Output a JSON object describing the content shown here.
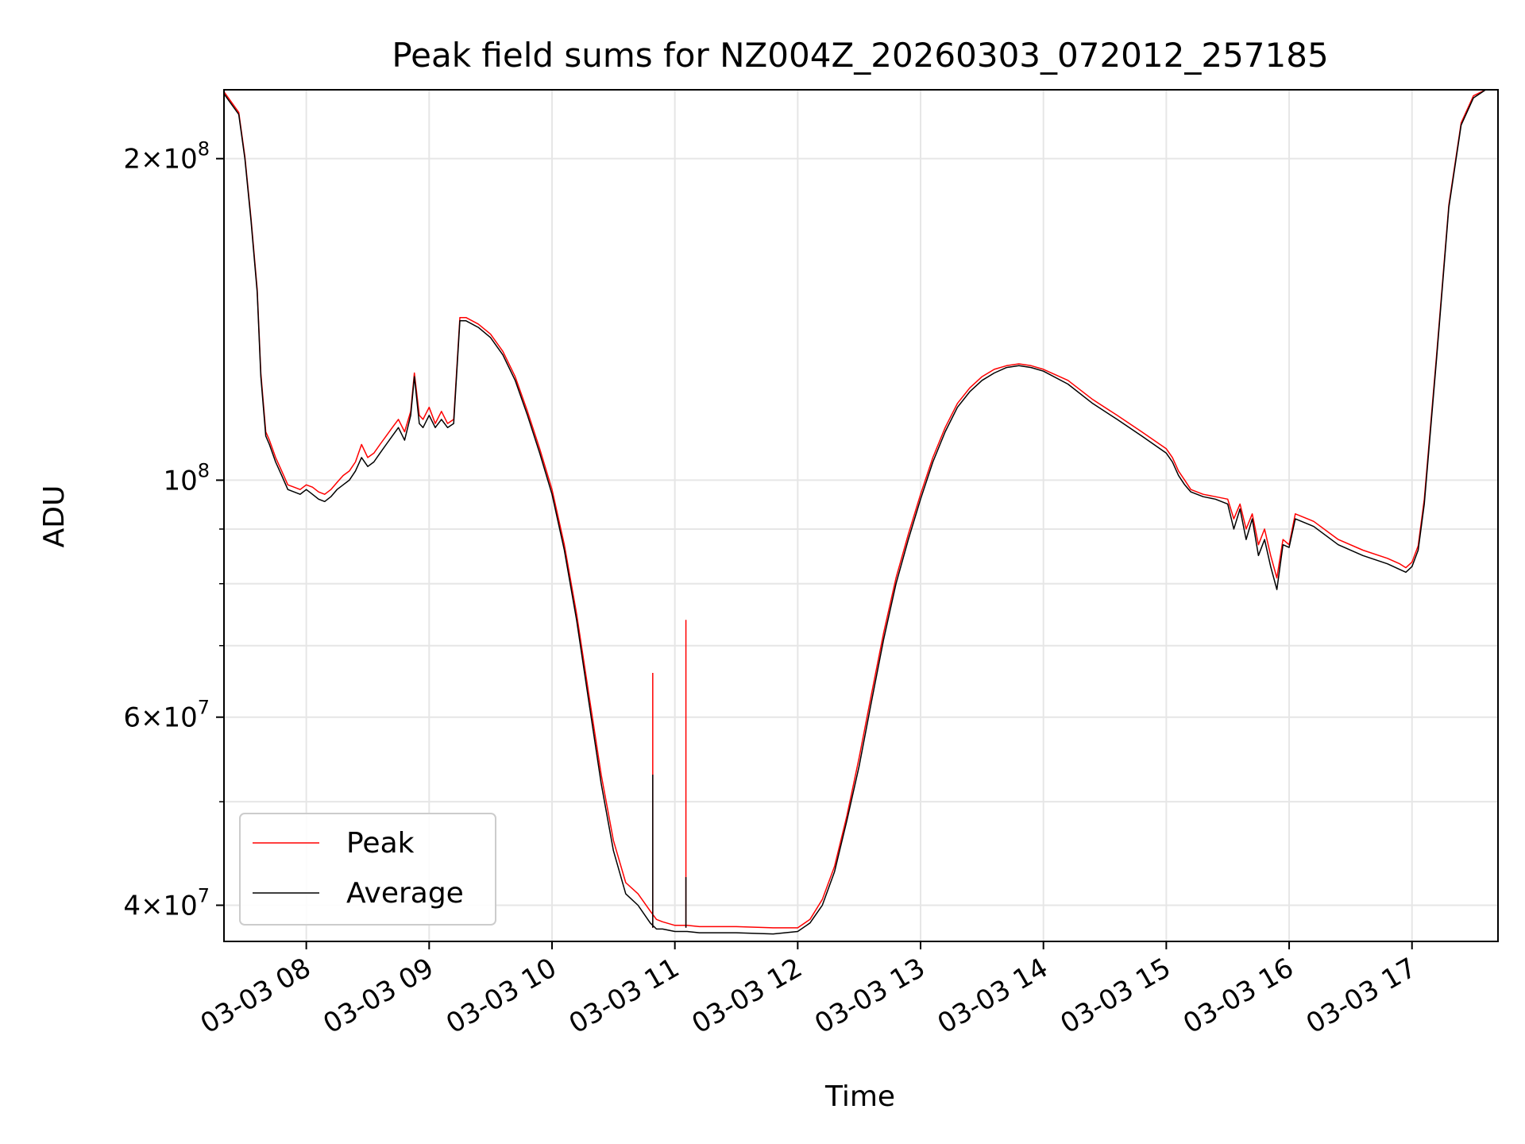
{
  "chart_data": {
    "type": "line",
    "title": "Peak field sums for NZ004Z_20260303_072012_257185",
    "xlabel": "Time",
    "ylabel": "ADU",
    "yscale": "log",
    "ylim": [
      37000000,
      232000000
    ],
    "xlim_hours": [
      7.33,
      17.7
    ],
    "grid": true,
    "legend_position": "lower left",
    "x_ticks": [
      {
        "value": 8,
        "label": "03-03 08"
      },
      {
        "value": 9,
        "label": "03-03 09"
      },
      {
        "value": 10,
        "label": "03-03 10"
      },
      {
        "value": 11,
        "label": "03-03 11"
      },
      {
        "value": 12,
        "label": "03-03 12"
      },
      {
        "value": 13,
        "label": "03-03 13"
      },
      {
        "value": 14,
        "label": "03-03 14"
      },
      {
        "value": 15,
        "label": "03-03 15"
      },
      {
        "value": 16,
        "label": "03-03 16"
      },
      {
        "value": 17,
        "label": "03-03 17"
      }
    ],
    "y_major_ticks": [
      {
        "value": 40000000,
        "mant": "4",
        "exp": "7"
      },
      {
        "value": 60000000,
        "mant": "6",
        "exp": "7"
      },
      {
        "value": 100000000,
        "mant": "",
        "exp": "8"
      },
      {
        "value": 200000000,
        "mant": "2",
        "exp": "8"
      }
    ],
    "y_minor_ticks": [
      50000000,
      70000000,
      80000000,
      90000000
    ],
    "series": [
      {
        "name": "Peak",
        "color": "#ff0000",
        "spikes": [
          {
            "x": 10.82,
            "y": 66000000
          },
          {
            "x": 11.09,
            "y": 74000000
          }
        ]
      },
      {
        "name": "Average",
        "color": "#000000",
        "spikes": [
          {
            "x": 10.82,
            "y": 53000000
          },
          {
            "x": 11.09,
            "y": 42500000
          }
        ]
      }
    ],
    "x": [
      7.33,
      7.45,
      7.5,
      7.55,
      7.6,
      7.63,
      7.67,
      7.7,
      7.75,
      7.8,
      7.85,
      7.9,
      7.95,
      8.0,
      8.05,
      8.1,
      8.15,
      8.2,
      8.25,
      8.3,
      8.35,
      8.4,
      8.45,
      8.5,
      8.55,
      8.6,
      8.65,
      8.7,
      8.75,
      8.8,
      8.85,
      8.88,
      8.92,
      8.95,
      9.0,
      9.05,
      9.1,
      9.15,
      9.2,
      9.25,
      9.3,
      9.4,
      9.5,
      9.6,
      9.7,
      9.8,
      9.9,
      10.0,
      10.1,
      10.2,
      10.3,
      10.4,
      10.5,
      10.6,
      10.7,
      10.8,
      10.85,
      10.9,
      11.0,
      11.1,
      11.2,
      11.5,
      11.8,
      12.0,
      12.1,
      12.2,
      12.3,
      12.4,
      12.5,
      12.6,
      12.7,
      12.8,
      12.9,
      13.0,
      13.1,
      13.2,
      13.3,
      13.4,
      13.5,
      13.6,
      13.7,
      13.8,
      13.9,
      14.0,
      14.2,
      14.4,
      14.6,
      14.8,
      15.0,
      15.05,
      15.1,
      15.15,
      15.2,
      15.3,
      15.4,
      15.5,
      15.55,
      15.6,
      15.65,
      15.7,
      15.75,
      15.8,
      15.85,
      15.9,
      15.95,
      16.0,
      16.05,
      16.2,
      16.4,
      16.6,
      16.8,
      16.9,
      16.95,
      17.0,
      17.05,
      17.1,
      17.2,
      17.3,
      17.4,
      17.5,
      17.6,
      17.7
    ],
    "average": [
      230000000,
      220000000,
      200000000,
      175000000,
      150000000,
      125000000,
      110000000,
      108000000,
      104000000,
      101000000,
      98000000,
      97500000,
      97000000,
      98000000,
      97000000,
      96000000,
      95500000,
      96500000,
      98000000,
      99000000,
      100000000,
      102000000,
      105000000,
      103000000,
      104000000,
      106000000,
      108000000,
      110000000,
      112000000,
      109000000,
      115000000,
      125000000,
      113000000,
      112000000,
      115000000,
      112000000,
      114000000,
      112000000,
      113000000,
      141000000,
      141000000,
      139000000,
      136000000,
      131000000,
      124000000,
      115000000,
      106000000,
      97000000,
      86000000,
      74000000,
      62000000,
      52000000,
      45000000,
      41000000,
      40000000,
      38500000,
      38000000,
      38000000,
      37800000,
      37800000,
      37700000,
      37700000,
      37600000,
      37800000,
      38500000,
      40000000,
      43000000,
      48000000,
      54000000,
      62000000,
      71000000,
      80000000,
      88000000,
      96000000,
      104000000,
      111000000,
      117000000,
      121000000,
      124000000,
      126000000,
      127500000,
      128000000,
      127500000,
      126500000,
      123000000,
      118000000,
      114000000,
      110000000,
      106000000,
      104000000,
      101000000,
      99000000,
      97500000,
      96500000,
      96000000,
      95000000,
      90000000,
      94000000,
      88000000,
      92000000,
      85000000,
      88000000,
      83000000,
      79000000,
      87000000,
      86500000,
      92000000,
      90500000,
      87000000,
      85000000,
      83500000,
      82500000,
      82000000,
      83000000,
      86000000,
      95000000,
      130000000,
      180000000,
      215000000,
      228000000,
      232000000,
      232000000
    ],
    "peak": [
      231000000,
      221000000,
      201000000,
      176000000,
      151000000,
      126000000,
      111000000,
      109000000,
      105000000,
      102000000,
      99000000,
      98500000,
      98000000,
      99000000,
      98500000,
      97500000,
      97000000,
      98000000,
      99500000,
      101000000,
      102000000,
      104000000,
      108000000,
      105000000,
      106000000,
      108000000,
      110000000,
      112000000,
      114000000,
      111000000,
      116000000,
      126000000,
      115000000,
      114000000,
      117000000,
      113000000,
      116000000,
      113000000,
      114000000,
      142000000,
      142000000,
      140000000,
      137000000,
      132000000,
      125000000,
      116000000,
      107000000,
      98000000,
      87000000,
      75000000,
      63000000,
      53000000,
      46000000,
      42000000,
      41000000,
      39500000,
      38800000,
      38600000,
      38300000,
      38300000,
      38200000,
      38200000,
      38100000,
      38100000,
      38800000,
      40500000,
      43500000,
      48500000,
      55000000,
      63000000,
      72000000,
      81000000,
      89000000,
      97000000,
      105000000,
      112000000,
      118000000,
      122000000,
      125000000,
      127000000,
      128000000,
      128500000,
      128000000,
      127000000,
      124000000,
      119000000,
      115000000,
      111000000,
      107000000,
      105000000,
      102000000,
      100000000,
      98000000,
      97000000,
      96500000,
      96000000,
      92000000,
      95000000,
      90000000,
      93000000,
      87000000,
      90000000,
      85000000,
      81000000,
      88000000,
      87000000,
      93000000,
      91500000,
      88000000,
      86000000,
      84500000,
      83500000,
      82800000,
      83800000,
      86800000,
      96000000,
      131000000,
      181000000,
      216000000,
      229000000,
      232000000,
      232000000
    ]
  }
}
